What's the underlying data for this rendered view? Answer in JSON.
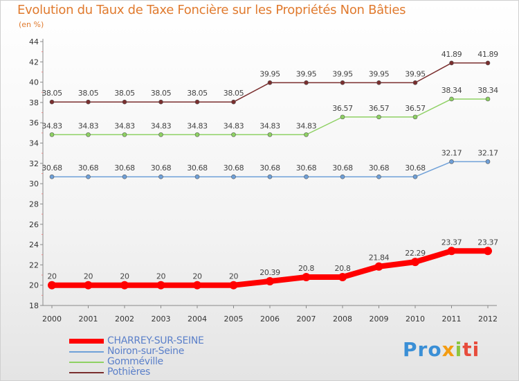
{
  "chart_data": {
    "type": "line",
    "title": "Evolution du Taux de Taxe Foncière sur les Propriétés Non Bâties",
    "subtitle": "(en %)",
    "x": [
      "2000",
      "2001",
      "2002",
      "2003",
      "2004",
      "2005",
      "2006",
      "2007",
      "2008",
      "2009",
      "2010",
      "2011",
      "2012"
    ],
    "ylim": [
      18,
      44
    ],
    "yticks": [
      18,
      20,
      22,
      24,
      26,
      28,
      30,
      32,
      34,
      36,
      38,
      40,
      42,
      44
    ],
    "series": [
      {
        "name": "Pothières",
        "color": "#7a2e2e",
        "labels": [
          "38.05",
          "38.05",
          "38.05",
          "38.05",
          "38.05",
          "38.05",
          "39.95",
          "39.95",
          "39.95",
          "39.95",
          "39.95",
          "41.89",
          "41.89"
        ],
        "values": [
          38.05,
          38.05,
          38.05,
          38.05,
          38.05,
          38.05,
          39.95,
          39.95,
          39.95,
          39.95,
          39.95,
          41.89,
          41.89
        ]
      },
      {
        "name": "Gomméville",
        "color": "#8ed163",
        "labels": [
          "34.83",
          "34.83",
          "34.83",
          "34.83",
          "34.83",
          "34.83",
          "34.83",
          "34.83",
          "36.57",
          "36.57",
          "36.57",
          "38.34",
          "38.34"
        ],
        "values": [
          34.83,
          34.83,
          34.83,
          34.83,
          34.83,
          34.83,
          34.83,
          34.83,
          36.57,
          36.57,
          36.57,
          38.34,
          38.34
        ]
      },
      {
        "name": "Noiron-sur-Seine",
        "color": "#6fa0d8",
        "labels": [
          "30.68",
          "30.68",
          "30.68",
          "30.68",
          "30.68",
          "30.68",
          "30.68",
          "30.68",
          "30.68",
          "30.68",
          "30.68",
          "32.17",
          "32.17"
        ],
        "values": [
          30.68,
          30.68,
          30.68,
          30.68,
          30.68,
          30.68,
          30.68,
          30.68,
          30.68,
          30.68,
          30.68,
          32.17,
          32.17
        ]
      },
      {
        "name": "CHARREY-SUR-SEINE",
        "color": "#ff0000",
        "labels": [
          "20",
          "20",
          "20",
          "20",
          "20",
          "20",
          "20.39",
          "20.8",
          "20.8",
          "21.84",
          "22.29",
          "23.37",
          "23.37"
        ],
        "values": [
          20,
          20,
          20,
          20,
          20,
          20,
          20.39,
          20.8,
          20.8,
          21.84,
          22.29,
          23.37,
          23.37
        ]
      }
    ],
    "legend": [
      "CHARREY-SUR-SEINE",
      "Noiron-sur-Seine",
      "Gomméville",
      "Pothières"
    ],
    "legend_position": "bottom-left",
    "grid": false
  },
  "logo": {
    "p1": "Pro",
    "p2": "x",
    "p3": "i",
    "p4": "ti"
  }
}
